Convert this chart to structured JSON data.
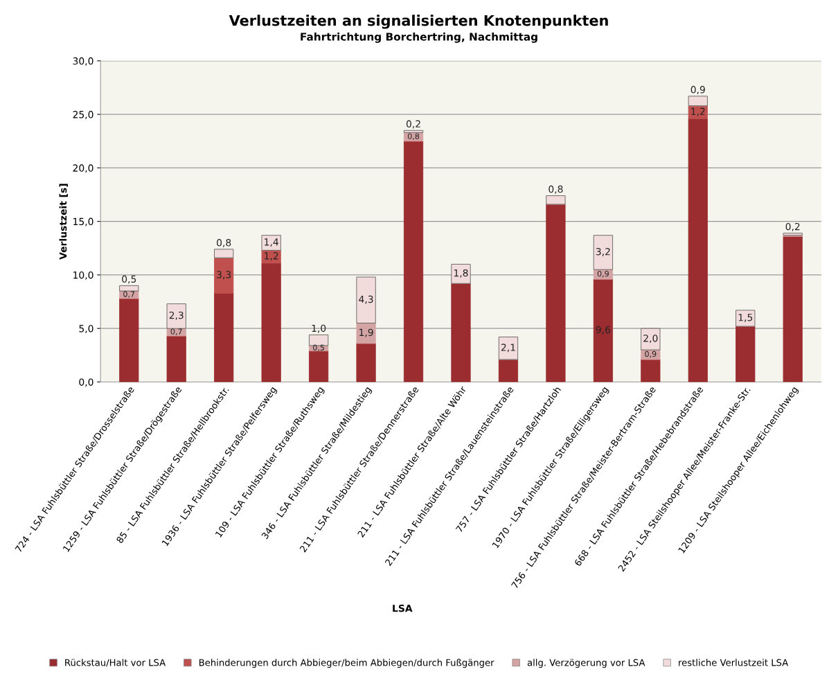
{
  "chart_data": {
    "type": "bar",
    "stacked": true,
    "title": "Verlustzeiten an signalisierten Knotenpunkten",
    "subtitle": "Fahrtrichtung Borchertring, Nachmittag",
    "xlabel": "LSA",
    "ylabel": "Verlustzeit [s]",
    "categories": [
      "724 - LSA Fuhlsbüttler Straße/Drosselstraße",
      "1259 - LSA Fuhlsbüttler Straße/Drögestraße",
      "85 - LSA Fuhlsbüttler Straße/Hellbrookstr.",
      "1936 - LSA Fuhlsbüttler Straße/Pelfersweg",
      "109 - LSA Fuhlsbüttler Straße/Ruthsweg",
      "346 - LSA Fuhlsbüttler Straße/Mildestieg",
      "211 - LSA Fuhlsbüttler Straße/Dennerstraße",
      "211 - LSA Fuhlsbüttler Straße/Alte Wöhr",
      "211 - LSA Fuhlsbüttler Straße/Lauensteinstraße",
      "757 - LSA Fuhlsbüttler Straße/Hartzloh",
      "1970 - LSA Fuhlsbüttler Straße/Elligersweg",
      "756 - LSA Fuhlsbüttler Straße/Meister-Bertram-Straße",
      "668 - LSA Fuhlsbüttler Straße/Hebebrandstraße",
      "2452 - LSA Steilshooper Allee/Meister-Franke-Str.",
      "1209 - LSA Steilshooper Allee/Eichenlohweg"
    ],
    "series": [
      {
        "name": "Rückstau/Halt vor LSA",
        "color": "#9b2d30",
        "values": [
          7.8,
          4.3,
          8.3,
          11.1,
          2.9,
          3.6,
          22.5,
          9.2,
          2.1,
          16.6,
          9.6,
          2.1,
          24.6,
          5.2,
          13.6
        ],
        "value_labels": [
          null,
          null,
          null,
          null,
          null,
          null,
          null,
          null,
          null,
          null,
          "9,6",
          null,
          null,
          null,
          null
        ]
      },
      {
        "name": "Behinderungen durch Abbieger/beim Abbiegen/durch Fußgänger",
        "color": "#c0504d",
        "values": [
          0,
          0,
          3.3,
          1.2,
          0,
          0,
          0,
          0,
          0,
          0,
          0,
          0,
          1.2,
          0,
          0
        ],
        "value_labels": [
          null,
          null,
          "3,3",
          "1,2",
          null,
          null,
          null,
          null,
          null,
          null,
          null,
          null,
          "1,2",
          null,
          null
        ]
      },
      {
        "name": "allg. Verzögerung vor LSA",
        "color": "#d4a3a3",
        "values": [
          0.7,
          0.7,
          0,
          0,
          0.5,
          1.9,
          0.8,
          0,
          0,
          0,
          0.9,
          0.9,
          0,
          0,
          0.1
        ],
        "value_labels": [
          "0,7",
          "0,7",
          null,
          null,
          "0,5",
          "1,9",
          "0,8",
          null,
          null,
          null,
          "0,9",
          "0,9",
          null,
          null,
          null
        ]
      },
      {
        "name": "restliche Verlustzeit LSA",
        "color": "#f2dcdb",
        "values": [
          0.5,
          2.3,
          0.8,
          1.4,
          1.0,
          4.3,
          0.2,
          1.8,
          2.1,
          0.8,
          3.2,
          2.0,
          0.9,
          1.5,
          0.2
        ],
        "value_labels": [
          "0,5",
          "2,3",
          "0,8",
          "1,4",
          "1,0",
          "4,3",
          "0,2",
          "1,8",
          "2,1",
          "0,8",
          "3,2",
          "2,0",
          "0,9",
          "1,5",
          "0,2"
        ]
      }
    ],
    "ylim": [
      0,
      30
    ],
    "yticks": [
      {
        "value": 0,
        "label": "0,0"
      },
      {
        "value": 5,
        "label": "5,0"
      },
      {
        "value": 10,
        "label": "10,0"
      },
      {
        "value": 15,
        "label": "15,0"
      },
      {
        "value": 20,
        "label": "20,0"
      },
      {
        "value": 25,
        "label": "25,0"
      },
      {
        "value": 30,
        "label": "30,0"
      }
    ],
    "grid": "y",
    "legend": "bottom"
  }
}
